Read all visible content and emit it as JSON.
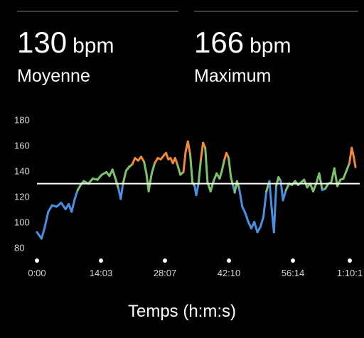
{
  "stats": [
    {
      "value": "130",
      "unit": "bpm",
      "label": "Moyenne"
    },
    {
      "value": "166",
      "unit": "bpm",
      "label": "Maximum"
    }
  ],
  "colors": {
    "background": "#000000",
    "text": "#ffffff",
    "axis_text": "#d6d6d6",
    "average_line": "#ffffff",
    "gradient_low": "#4a90e2",
    "gradient_mid": "#7cc36b",
    "gradient_high": "#f08a3a"
  },
  "chart_data": {
    "type": "line",
    "title": "",
    "xlabel": "Temps (h:m:s)",
    "ylabel": "",
    "ylim": [
      77,
      182
    ],
    "y_ticks": [
      80,
      100,
      120,
      140,
      160,
      180
    ],
    "x_ticks": [
      "0:00",
      "14:03",
      "28:07",
      "42:10",
      "56:14",
      "1:10:1"
    ],
    "xlim_seconds": [
      0,
      4220
    ],
    "average_bpm": 130,
    "grid": false,
    "series": [
      {
        "values": [
          [
            0,
            92
          ],
          [
            60,
            87
          ],
          [
            100,
            95
          ],
          [
            150,
            108
          ],
          [
            200,
            113
          ],
          [
            260,
            112
          ],
          [
            320,
            115
          ],
          [
            380,
            110
          ],
          [
            420,
            114
          ],
          [
            460,
            108
          ],
          [
            500,
            118
          ],
          [
            540,
            125
          ],
          [
            580,
            129
          ],
          [
            620,
            132
          ],
          [
            680,
            130
          ],
          [
            740,
            134
          ],
          [
            800,
            133
          ],
          [
            860,
            137
          ],
          [
            920,
            139
          ],
          [
            960,
            136
          ],
          [
            1000,
            141
          ],
          [
            1040,
            134
          ],
          [
            1080,
            126
          ],
          [
            1110,
            118
          ],
          [
            1140,
            130
          ],
          [
            1180,
            140
          ],
          [
            1220,
            143
          ],
          [
            1260,
            145
          ],
          [
            1300,
            150
          ],
          [
            1340,
            148
          ],
          [
            1380,
            151
          ],
          [
            1420,
            147
          ],
          [
            1450,
            138
          ],
          [
            1480,
            124
          ],
          [
            1520,
            138
          ],
          [
            1560,
            146
          ],
          [
            1600,
            150
          ],
          [
            1640,
            149
          ],
          [
            1680,
            152
          ],
          [
            1710,
            154
          ],
          [
            1740,
            149
          ],
          [
            1770,
            150
          ],
          [
            1800,
            146
          ],
          [
            1830,
            150
          ],
          [
            1860,
            145
          ],
          [
            1900,
            137
          ],
          [
            1940,
            139
          ],
          [
            1970,
            155
          ],
          [
            2000,
            163
          ],
          [
            2030,
            153
          ],
          [
            2060,
            131
          ],
          [
            2090,
            128
          ],
          [
            2110,
            121
          ],
          [
            2140,
            130
          ],
          [
            2170,
            148
          ],
          [
            2200,
            162
          ],
          [
            2230,
            158
          ],
          [
            2260,
            131
          ],
          [
            2300,
            124
          ],
          [
            2340,
            132
          ],
          [
            2380,
            138
          ],
          [
            2420,
            134
          ],
          [
            2450,
            140
          ],
          [
            2480,
            148
          ],
          [
            2510,
            154
          ],
          [
            2540,
            150
          ],
          [
            2570,
            135
          ],
          [
            2600,
            128
          ],
          [
            2620,
            123
          ],
          [
            2650,
            132
          ],
          [
            2680,
            126
          ],
          [
            2720,
            112
          ],
          [
            2760,
            107
          ],
          [
            2800,
            100
          ],
          [
            2840,
            95
          ],
          [
            2880,
            100
          ],
          [
            2920,
            92
          ],
          [
            2960,
            96
          ],
          [
            3000,
            104
          ],
          [
            3040,
            124
          ],
          [
            3080,
            132
          ],
          [
            3110,
            110
          ],
          [
            3140,
            92
          ],
          [
            3170,
            128
          ],
          [
            3200,
            135
          ],
          [
            3230,
            132
          ],
          [
            3260,
            117
          ],
          [
            3300,
            125
          ],
          [
            3340,
            130
          ],
          [
            3380,
            129
          ],
          [
            3420,
            132
          ],
          [
            3460,
            129
          ],
          [
            3500,
            131
          ],
          [
            3540,
            133
          ],
          [
            3580,
            127
          ],
          [
            3620,
            130
          ],
          [
            3660,
            124
          ],
          [
            3700,
            130
          ],
          [
            3740,
            138
          ],
          [
            3780,
            125
          ],
          [
            3820,
            126
          ],
          [
            3860,
            130
          ],
          [
            3900,
            131
          ],
          [
            3940,
            142
          ],
          [
            3980,
            128
          ],
          [
            4020,
            133
          ],
          [
            4060,
            134
          ],
          [
            4100,
            140
          ],
          [
            4140,
            146
          ],
          [
            4170,
            158
          ],
          [
            4200,
            150
          ],
          [
            4220,
            143
          ]
        ]
      }
    ]
  }
}
